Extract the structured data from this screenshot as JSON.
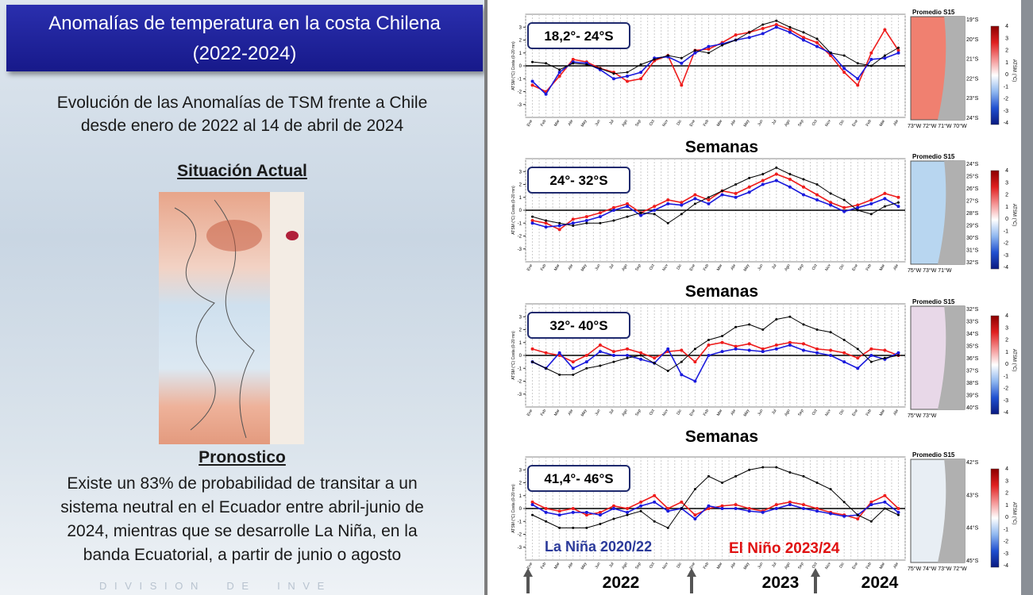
{
  "header": {
    "title_lines": [
      "Anomalías de temperatura en la costa Chilena",
      "(2022-2024)"
    ]
  },
  "left": {
    "intro_lines": [
      "Evolución de las Anomalías de TSM frente a Chile",
      "desde enero de 2022 al 14 de abril de 2024"
    ],
    "current_heading": "Situación Actual",
    "forecast_heading": "Pronostico",
    "forecast_lines": [
      "Existe un 83% de probabilidad de transitar a un",
      "sistema neutral en el Ecuador entre abril-junio de",
      "2024, mientras que se desarrolle La Niña, en la",
      "banda Ecuatorial, a partir de junio o agosto"
    ],
    "footer": "D I V I S I O N     D E     I N V E"
  },
  "axis": {
    "ylim": [
      -4,
      4
    ],
    "yticks": [
      -3,
      -2,
      -1,
      0,
      1,
      2,
      3
    ],
    "ylabel": "ATSM (°C) Costa (0-20 mn)",
    "xlabel": "Semanas",
    "months": [
      "Ene",
      "Feb",
      "Mar",
      "Abr",
      "May",
      "Jun",
      "Jul",
      "Ago",
      "Sep",
      "Oct",
      "Nov",
      "Dic",
      "Ene",
      "Feb",
      "Mar",
      "Abr",
      "May",
      "Jun",
      "Jul",
      "Ago",
      "Sep",
      "Oct",
      "Nov",
      "Dic",
      "Ene",
      "Feb",
      "Mar",
      "Abr"
    ],
    "colorbar_ticks": [
      4,
      3,
      2,
      1,
      0,
      -1,
      -2,
      -3,
      -4
    ],
    "colorbar_label": "ATSM (°C)"
  },
  "colors": {
    "monthly": "#000000",
    "red": "#ee1c1c",
    "blue": "#1a1adc"
  },
  "panels": [
    {
      "label": "18,2°- 24°S",
      "map_title": "Promedio S15",
      "lat_labels": [
        "19°S",
        "20°S",
        "21°S",
        "22°S",
        "23°S",
        "24°S"
      ],
      "lon_labels": "73°W 72°W 71°W 70°W",
      "monthly": [
        0.3,
        0.2,
        -0.3,
        0.2,
        0.1,
        -0.2,
        -0.6,
        -0.5,
        0.1,
        0.5,
        0.8,
        0.6,
        1.2,
        1.0,
        1.6,
        2.0,
        2.6,
        3.2,
        3.5,
        3.0,
        2.6,
        2.1,
        1.0,
        0.8,
        0.2,
        0.0,
        0.8,
        1.4
      ],
      "red": [
        -1.5,
        -2.0,
        -0.8,
        0.5,
        0.3,
        -0.2,
        -0.5,
        -1.2,
        -1.0,
        0.4,
        0.8,
        -1.5,
        1.2,
        1.3,
        1.8,
        2.4,
        2.6,
        2.9,
        3.2,
        2.8,
        2.2,
        1.8,
        0.8,
        -0.5,
        -1.5,
        1.0,
        2.8,
        1.2
      ],
      "blue": [
        -1.2,
        -2.2,
        -0.5,
        0.3,
        0.2,
        -0.3,
        -1.0,
        -0.8,
        -0.5,
        0.6,
        0.7,
        0.2,
        1.0,
        1.5,
        1.7,
        2.0,
        2.2,
        2.5,
        3.0,
        2.6,
        2.0,
        1.5,
        1.0,
        -0.2,
        -1.0,
        0.5,
        0.6,
        1.0
      ]
    },
    {
      "label": "24°- 32°S",
      "map_title": "Promedio S15",
      "lat_labels": [
        "24°S",
        "25°S",
        "26°S",
        "27°S",
        "28°S",
        "29°S",
        "30°S",
        "31°S",
        "32°S"
      ],
      "lon_labels": "75°W   73°W   71°W",
      "monthly": [
        -0.5,
        -0.8,
        -1.0,
        -1.2,
        -1.0,
        -1.0,
        -0.8,
        -0.5,
        -0.2,
        -0.3,
        -1.0,
        -0.3,
        0.5,
        1.0,
        1.5,
        2.0,
        2.5,
        2.8,
        3.3,
        2.8,
        2.4,
        2.0,
        1.3,
        0.8,
        0.0,
        -0.3,
        0.3,
        0.6
      ],
      "red": [
        -0.8,
        -1.0,
        -1.5,
        -0.7,
        -0.5,
        -0.2,
        0.2,
        0.5,
        -0.2,
        0.3,
        0.8,
        0.6,
        1.2,
        0.8,
        1.5,
        1.3,
        1.8,
        2.3,
        2.8,
        2.4,
        1.8,
        1.2,
        0.6,
        0.2,
        0.4,
        0.8,
        1.3,
        1.0
      ],
      "blue": [
        -1.0,
        -1.3,
        -1.2,
        -1.0,
        -0.8,
        -0.5,
        0.0,
        0.3,
        -0.4,
        0.0,
        0.5,
        0.4,
        0.9,
        0.5,
        1.2,
        1.0,
        1.4,
        2.0,
        2.3,
        1.8,
        1.2,
        0.8,
        0.4,
        -0.1,
        0.2,
        0.5,
        0.9,
        0.3
      ]
    },
    {
      "label": "32°- 40°S",
      "map_title": "Promedio S15",
      "lat_labels": [
        "32°S",
        "33°S",
        "34°S",
        "35°S",
        "36°S",
        "37°S",
        "38°S",
        "39°S",
        "40°S"
      ],
      "lon_labels": "75°W   73°W",
      "monthly": [
        -0.5,
        -1.0,
        -1.5,
        -1.5,
        -1.0,
        -0.8,
        -0.5,
        -0.2,
        0.0,
        -0.6,
        -1.2,
        -0.5,
        0.5,
        1.2,
        1.5,
        2.2,
        2.4,
        2.0,
        2.8,
        3.0,
        2.4,
        2.0,
        1.8,
        1.2,
        0.5,
        -0.5,
        -0.2,
        0.0
      ],
      "red": [
        0.5,
        0.2,
        0.0,
        -0.5,
        0.0,
        0.8,
        0.3,
        0.5,
        0.2,
        -0.2,
        0.3,
        0.4,
        -0.5,
        0.8,
        1.0,
        0.7,
        0.9,
        0.5,
        0.8,
        1.0,
        0.9,
        0.5,
        0.4,
        0.2,
        -0.2,
        0.5,
        0.4,
        0.0
      ],
      "blue": [
        -0.5,
        -1.0,
        0.2,
        -1.0,
        -0.5,
        0.3,
        0.0,
        0.0,
        -0.3,
        -0.6,
        0.5,
        -1.5,
        -2.0,
        0.0,
        0.3,
        0.5,
        0.4,
        0.3,
        0.5,
        0.8,
        0.4,
        0.2,
        0.0,
        -0.5,
        -1.0,
        0.0,
        -0.3,
        0.2
      ]
    },
    {
      "label": "41,4°- 46°S",
      "map_title": "Promedio S15",
      "lat_labels": [
        "42°S",
        "43°S",
        "44°S",
        "45°S"
      ],
      "lon_labels": "75°W 74°W 73°W 72°W",
      "monthly": [
        -0.5,
        -1.0,
        -1.5,
        -1.5,
        -1.5,
        -1.2,
        -0.8,
        -0.5,
        -0.2,
        -1.0,
        -1.5,
        0.0,
        1.5,
        2.5,
        2.0,
        2.5,
        3.0,
        3.2,
        3.2,
        2.8,
        2.5,
        2.0,
        1.5,
        0.5,
        -0.5,
        -1.0,
        0.0,
        -0.5
      ],
      "red": [
        0.5,
        0.0,
        -0.2,
        0.0,
        -0.5,
        -0.3,
        0.2,
        0.0,
        0.5,
        1.0,
        0.0,
        0.5,
        -0.5,
        0.0,
        0.2,
        0.3,
        0.0,
        -0.2,
        0.3,
        0.5,
        0.3,
        0.0,
        -0.3,
        -0.5,
        -0.8,
        0.5,
        1.0,
        0.0
      ],
      "blue": [
        0.3,
        -0.3,
        -0.5,
        -0.3,
        -0.3,
        -0.5,
        0.0,
        -0.3,
        0.2,
        0.5,
        -0.2,
        0.0,
        -0.8,
        0.2,
        0.0,
        0.0,
        -0.2,
        -0.3,
        0.0,
        0.3,
        0.0,
        -0.2,
        -0.4,
        -0.6,
        -0.5,
        0.3,
        0.5,
        -0.3
      ]
    }
  ],
  "annotations": {
    "la_nina": "La Niña 2020/22",
    "el_nino": "El Niño 2023/24"
  },
  "years": [
    "2022",
    "2023",
    "2024"
  ]
}
